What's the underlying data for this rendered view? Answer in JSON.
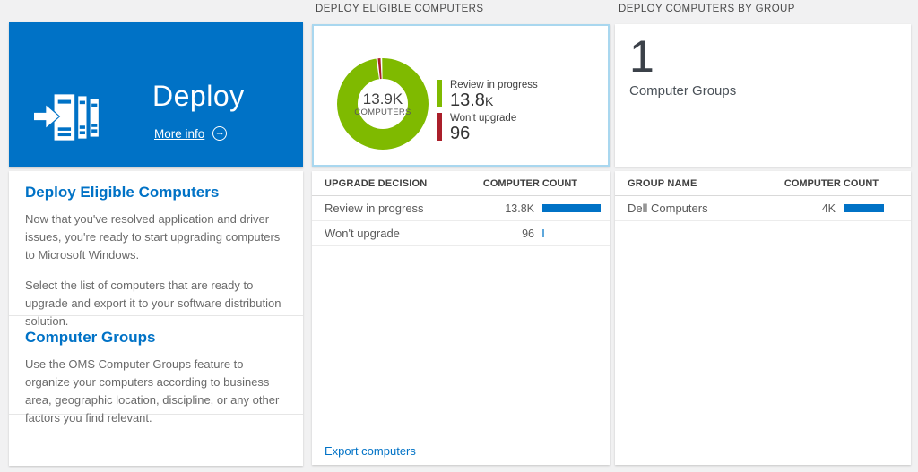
{
  "colors": {
    "tile_blue": "#0072c6",
    "selected_border_blue": "#a9d7ef",
    "donut_green": "#7fba00",
    "donut_red": "#aa1f2a",
    "bar_blue": "#0072c6",
    "bar_blue_light": "#5ea8dc",
    "link_blue": "#0072c6"
  },
  "deploy_tile": {
    "title": "Deploy",
    "more_info": "More info",
    "arrow_glyph": "→"
  },
  "left_panel": {
    "sections": [
      {
        "heading": "Deploy Eligible Computers",
        "paragraphs": [
          "Now that you've resolved application and driver issues, you're ready to start upgrading computers to Microsoft Windows.",
          "Select the list of computers that are ready to upgrade and export it to your software distribution solution."
        ]
      },
      {
        "heading": "Computer Groups",
        "paragraphs": [
          "Use the OMS Computer Groups feature to organize your computers according to business area, geographic location, discipline, or any other factors you find relevant."
        ]
      }
    ]
  },
  "middle": {
    "header": "DEPLOY ELIGIBLE COMPUTERS",
    "donut": {
      "center_value": "13.9K",
      "center_label": "COMPUTERS",
      "legend": [
        {
          "label": "Review in progress",
          "value": "13.8K",
          "value_num": "13.8",
          "value_suffix": "K",
          "color": "#7fba00"
        },
        {
          "label": "Won't upgrade",
          "value": "96",
          "value_num": "96",
          "value_suffix": "",
          "color": "#aa1f2a"
        }
      ]
    },
    "table": {
      "columns": [
        "UPGRADE DECISION",
        "COMPUTER COUNT"
      ],
      "rows": [
        {
          "label": "Review in progress",
          "value": "13.8K",
          "bar_pct": 87,
          "bar_color": "#0072c6"
        },
        {
          "label": "Won't upgrade",
          "value": "96",
          "bar_pct": 3,
          "bar_color": "#5ea8dc"
        }
      ]
    },
    "footer_link": "Export computers"
  },
  "right": {
    "header": "DEPLOY COMPUTERS BY GROUP",
    "summary": {
      "count": "1",
      "label": "Computer Groups"
    },
    "table": {
      "columns": [
        "GROUP NAME",
        "COMPUTER COUNT"
      ],
      "rows": [
        {
          "label": "Dell Computers",
          "value": "4K",
          "bar_pct": 60,
          "bar_color": "#0072c6"
        }
      ]
    }
  },
  "chart_data": [
    {
      "type": "pie",
      "donut": true,
      "title": "DEPLOY ELIGIBLE COMPUTERS",
      "labels": [
        "Review in progress",
        "Won't upgrade"
      ],
      "values": [
        13800,
        96
      ],
      "colors": [
        "#7fba00",
        "#aa1f2a"
      ],
      "center_value": "13.9K",
      "center_label": "COMPUTERS",
      "legend_position": "right"
    },
    {
      "type": "bar",
      "orientation": "horizontal",
      "title": "UPGRADE DECISION vs COMPUTER COUNT",
      "categories": [
        "Review in progress",
        "Won't upgrade"
      ],
      "values": [
        13800,
        96
      ],
      "value_labels": [
        "13.8K",
        "96"
      ]
    },
    {
      "type": "bar",
      "orientation": "horizontal",
      "title": "DEPLOY COMPUTERS BY GROUP",
      "categories": [
        "Dell Computers"
      ],
      "values": [
        4000
      ],
      "value_labels": [
        "4K"
      ]
    }
  ]
}
